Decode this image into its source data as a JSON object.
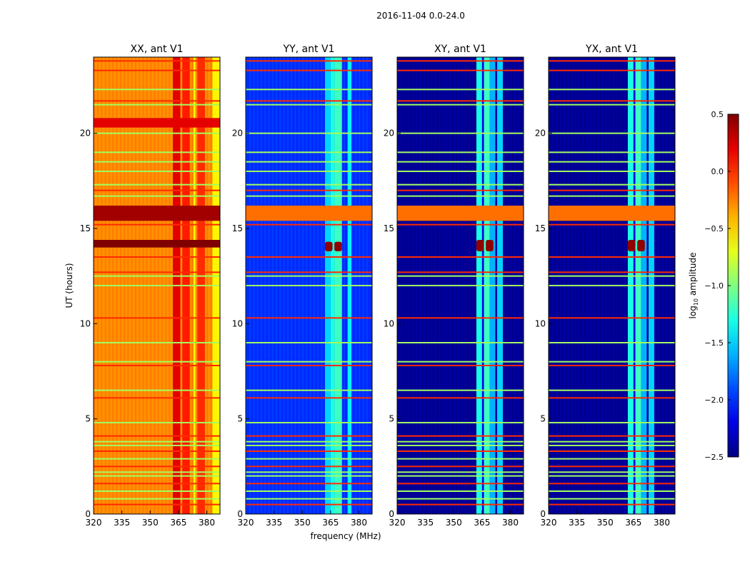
{
  "chart_data": {
    "type": "heatmap",
    "title": "2016-11-04 0.0-24.0",
    "xlabel": "frequency (MHz)",
    "ylabel": "UT (hours)",
    "xlim": [
      320,
      387
    ],
    "ylim": [
      0,
      24
    ],
    "xticks": [
      320,
      335,
      350,
      365,
      380
    ],
    "yticks": [
      0,
      5,
      10,
      15,
      20
    ],
    "colorbar": {
      "label": "log10 amplitude",
      "label_main": "log",
      "label_sub": "10",
      "label_rest": " amplitude",
      "range": [
        -2.5,
        0.5
      ],
      "ticks": [
        "0.5",
        "0.0",
        "−0.5",
        "−1.0",
        "−1.5",
        "−2.0",
        "−2.5"
      ],
      "tick_values": [
        0.5,
        0.0,
        -0.5,
        -1.0,
        -1.5,
        -2.0,
        -2.5
      ],
      "colormap": "jet"
    },
    "panels": [
      {
        "title": "XX, ant V1",
        "base": -0.3,
        "bands": [
          [
            362,
            366,
            0.2
          ],
          [
            366,
            367,
            -0.3
          ],
          [
            367,
            371,
            0.05
          ],
          [
            373,
            374,
            -0.6
          ],
          [
            375,
            379,
            0.0
          ],
          [
            383,
            387,
            -0.6
          ]
        ],
        "blocks": [
          [
            15.4,
            16.2,
            0.4
          ],
          [
            14.0,
            14.4,
            0.5
          ],
          [
            20.3,
            20.8,
            0.2
          ]
        ]
      },
      {
        "title": "YY, ant V1",
        "base": -2.0,
        "bands": [
          [
            362,
            365,
            -1.5
          ],
          [
            365,
            367,
            -1.3
          ],
          [
            367,
            371,
            -1.2
          ],
          [
            374,
            376,
            -1.4
          ]
        ],
        "blocks": [
          [
            15.4,
            16.2,
            -0.2
          ],
          [
            13.8,
            14.3,
            0.45
          ]
        ]
      },
      {
        "title": "XY, ant V1",
        "base": -2.45,
        "bands": [
          [
            362,
            365,
            -1.3
          ],
          [
            365,
            366,
            -2.2
          ],
          [
            366,
            369,
            -1.2
          ],
          [
            369,
            372,
            -1.6
          ],
          [
            373,
            376,
            -1.5
          ]
        ],
        "blocks": [
          [
            15.4,
            16.2,
            -0.2
          ],
          [
            13.8,
            14.4,
            0.45
          ]
        ]
      },
      {
        "title": "YX, ant V1",
        "base": -2.45,
        "bands": [
          [
            362,
            365,
            -1.3
          ],
          [
            365,
            366,
            -2.2
          ],
          [
            366,
            369,
            -1.2
          ],
          [
            369,
            372,
            -1.6
          ],
          [
            373,
            376,
            -1.5
          ]
        ],
        "blocks": [
          [
            15.4,
            16.2,
            -0.2
          ],
          [
            13.8,
            14.4,
            0.45
          ]
        ]
      }
    ],
    "rfi_lines": {
      "red": [
        0.5,
        1.6,
        2.5,
        3.3,
        4.1,
        6.1,
        7.8,
        10.3,
        12.7,
        13.5,
        15.2,
        17.0,
        21.7,
        23.3,
        23.8
      ],
      "red_value": 0.0,
      "green": [
        0.8,
        1.2,
        2.0,
        2.2,
        2.9,
        3.6,
        3.8,
        4.8,
        6.5,
        8.0,
        9.0,
        12.0,
        12.5,
        16.7,
        17.3,
        18.0,
        18.5,
        19.0,
        20.0,
        21.5,
        22.3
      ],
      "green_value": -0.9
    }
  }
}
